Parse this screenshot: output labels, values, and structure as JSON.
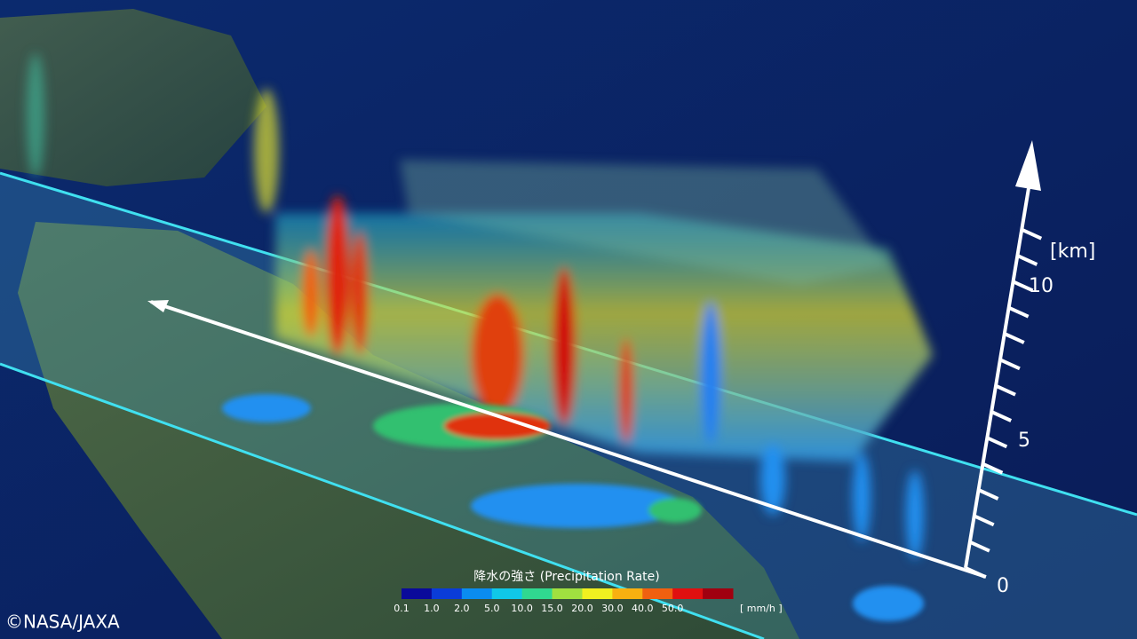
{
  "legend": {
    "title": "降水の強さ  (Precipitation Rate)",
    "ticks": [
      "0.1",
      "1.0",
      "2.0",
      "5.0",
      "10.0",
      "15.0",
      "20.0",
      "30.0",
      "40.0",
      "50.0"
    ],
    "unit": "[ mm/h ]",
    "colors": [
      "#0a0a9a",
      "#0a3cd8",
      "#0a8cf0",
      "#10c8e8",
      "#30d890",
      "#a0e040",
      "#f0f020",
      "#f8b010",
      "#f06010",
      "#e01010",
      "#a00010"
    ]
  },
  "height_axis": {
    "unit": "[km]",
    "labels": [
      "0",
      "5",
      "10"
    ]
  },
  "credit": "©NASA/JAXA"
}
